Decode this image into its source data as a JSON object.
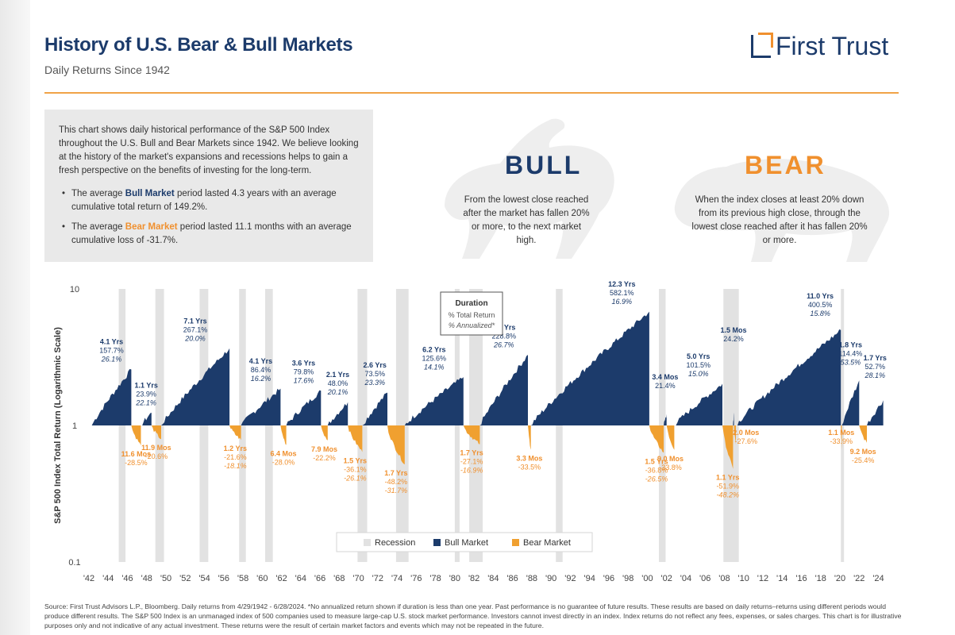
{
  "header": {
    "title": "History of U.S. Bear & Bull Markets",
    "subtitle": "Daily Returns Since 1942",
    "logo_text": "First Trust"
  },
  "intro": {
    "paragraph": "This chart shows daily historical performance of the S&P 500 Index throughout the U.S. Bull and Bear Markets since 1942. We believe looking at the history of the market's expansions and recessions helps to gain a fresh perspective on the benefits of investing for the long-term.",
    "bull_pre": "The average ",
    "bull_hl": "Bull Market",
    "bull_post": " period lasted 4.3 years with an average cumulative total return of 149.2%.",
    "bear_pre": "The average ",
    "bear_hl": "Bear Market",
    "bear_post": " period lasted 11.1 months with an average cumulative loss of -31.7%."
  },
  "hero": {
    "bull_word": "BULL",
    "bull_desc": "From the lowest close reached after the market has fallen 20% or more, to the next market high.",
    "bear_word": "BEAR",
    "bear_desc": "When the index closes at least 20% down from its previous high close, through the lowest close reached after it has fallen 20% or more."
  },
  "colors": {
    "bull": "#1c3b6b",
    "bear": "#f0a030",
    "recession": "#e2e2e2",
    "accent": "#f0a347"
  },
  "chart_data": {
    "type": "area",
    "ylabel": "S&P 500 Index Total Return (Logarithmic Scale)",
    "y_scale": "log",
    "ylim": [
      0.1,
      10
    ],
    "y_ticks": [
      "10",
      "1",
      "0.1"
    ],
    "xlim": [
      1942,
      2024.7
    ],
    "x_ticks": [
      "'42",
      "'44",
      "'46",
      "'48",
      "'50",
      "'52",
      "'54",
      "'56",
      "'58",
      "'60",
      "'62",
      "'64",
      "'66",
      "'68",
      "'70",
      "'72",
      "'74",
      "'76",
      "'78",
      "'80",
      "'82",
      "'84",
      "'86",
      "'88",
      "'90",
      "'92",
      "'94",
      "'96",
      "'98",
      "'00",
      "'02",
      "'04",
      "'06",
      "'08",
      "'10",
      "'12",
      "'14",
      "'16",
      "'18",
      "'20",
      "'22",
      "'24"
    ],
    "duration_box": {
      "title": "Duration",
      "line2": "% Total Return",
      "line3": "% Annualized*"
    },
    "legend": {
      "recession": "Recession",
      "bull": "Bull Market",
      "bear": "Bear Market",
      "position": "bottom-center"
    },
    "recessions": [
      [
        1945.1,
        1945.8
      ],
      [
        1948.9,
        1949.8
      ],
      [
        1953.5,
        1954.4
      ],
      [
        1957.6,
        1958.3
      ],
      [
        1960.3,
        1961.1
      ],
      [
        1969.9,
        1970.9
      ],
      [
        1973.9,
        1975.2
      ],
      [
        1980.0,
        1980.5
      ],
      [
        1981.5,
        1982.9
      ],
      [
        1990.5,
        1991.2
      ],
      [
        2001.2,
        2001.9
      ],
      [
        2007.9,
        2009.5
      ],
      [
        2020.1,
        2020.35
      ]
    ],
    "bull_markets": [
      {
        "start": 1942.3,
        "end": 1946.4,
        "peak": 2.57,
        "labels": [
          "4.1 Yrs",
          "157.7%",
          "26.1%"
        ]
      },
      {
        "start": 1947.4,
        "end": 1948.5,
        "peak": 1.24,
        "labels": [
          "1.1 Yrs",
          "23.9%",
          "22.1%"
        ]
      },
      {
        "start": 1949.5,
        "end": 1956.6,
        "peak": 3.67,
        "labels": [
          "7.1 Yrs",
          "267.1%",
          "20.0%"
        ]
      },
      {
        "start": 1957.8,
        "end": 1961.9,
        "peak": 1.86,
        "labels": [
          "4.1 Yrs",
          "86.4%",
          "16.2%"
        ]
      },
      {
        "start": 1962.5,
        "end": 1966.1,
        "peak": 1.8,
        "labels": [
          "3.6 Yrs",
          "79.8%",
          "17.6%"
        ]
      },
      {
        "start": 1966.8,
        "end": 1968.9,
        "peak": 1.48,
        "labels": [
          "2.1 Yrs",
          "48.0%",
          "20.1%"
        ]
      },
      {
        "start": 1970.4,
        "end": 1973.0,
        "peak": 1.74,
        "labels": [
          "2.6 Yrs",
          "73.5%",
          "23.3%"
        ]
      },
      {
        "start": 1974.8,
        "end": 1980.9,
        "peak": 2.26,
        "labels": [
          "6.2 Yrs",
          "125.6%",
          "14.1%"
        ]
      },
      {
        "start": 1982.6,
        "end": 1987.6,
        "peak": 3.29,
        "labels": [
          "5.0 Yrs",
          "228.8%",
          "26.7%"
        ]
      },
      {
        "start": 1987.9,
        "end": 2000.2,
        "peak": 6.82,
        "labels": [
          "12.3 Yrs",
          "582.1%",
          "16.9%"
        ]
      },
      {
        "start": 2001.7,
        "end": 2002.0,
        "peak": 1.21,
        "labels": [
          "3.4 Mos",
          "21.4%",
          ""
        ]
      },
      {
        "start": 2002.8,
        "end": 2007.8,
        "peak": 2.02,
        "labels": [
          "5.0 Yrs",
          "101.5%",
          "15.0%"
        ]
      },
      {
        "start": 2008.9,
        "end": 2009.0,
        "peak": 1.24,
        "labels": [
          "1.5 Mos",
          "24.2%",
          ""
        ]
      },
      {
        "start": 2009.2,
        "end": 2020.1,
        "peak": 5.0,
        "labels": [
          "11.0 Yrs",
          "400.5%",
          "15.8%"
        ]
      },
      {
        "start": 2020.2,
        "end": 2022.0,
        "peak": 2.14,
        "labels": [
          "1.8 Yrs",
          "114.4%",
          "53.5%"
        ]
      },
      {
        "start": 2022.8,
        "end": 2024.5,
        "peak": 1.53,
        "labels": [
          "1.7 Yrs",
          "52.7%",
          "28.1%"
        ]
      }
    ],
    "bear_markets": [
      {
        "start": 1946.4,
        "end": 1947.4,
        "trough": 0.715,
        "labels": [
          "11.6 Mos",
          "-28.5%",
          ""
        ]
      },
      {
        "start": 1948.5,
        "end": 1949.5,
        "trough": 0.794,
        "labels": [
          "11.9 Mos",
          "-20.6%",
          ""
        ]
      },
      {
        "start": 1956.6,
        "end": 1957.8,
        "trough": 0.784,
        "labels": [
          "1.2 Yrs",
          "-21.6%",
          "-18.1%"
        ]
      },
      {
        "start": 1961.9,
        "end": 1962.5,
        "trough": 0.72,
        "labels": [
          "6.4 Mos",
          "-28.0%",
          ""
        ]
      },
      {
        "start": 1966.1,
        "end": 1966.8,
        "trough": 0.778,
        "labels": [
          "7.9 Mos",
          "-22.2%",
          ""
        ]
      },
      {
        "start": 1968.9,
        "end": 1970.4,
        "trough": 0.639,
        "labels": [
          "1.5 Yrs",
          "-36.1%",
          "-26.1%"
        ]
      },
      {
        "start": 1973.0,
        "end": 1974.8,
        "trough": 0.518,
        "labels": [
          "1.7 Yrs",
          "-48.2%",
          "-31.7%"
        ]
      },
      {
        "start": 1980.9,
        "end": 1982.6,
        "trough": 0.729,
        "labels": [
          "1.7 Yrs",
          "-27.1%",
          "-16.9%"
        ]
      },
      {
        "start": 1987.6,
        "end": 1987.9,
        "trough": 0.665,
        "labels": [
          "3.3 Mos",
          "-33.5%",
          ""
        ]
      },
      {
        "start": 2000.2,
        "end": 2001.7,
        "trough": 0.632,
        "labels": [
          "1.5 Yrs",
          "-36.8%",
          "-26.5%"
        ]
      },
      {
        "start": 2002.0,
        "end": 2002.8,
        "trough": 0.662,
        "labels": [
          "9.0 Mos",
          "-33.8%",
          ""
        ]
      },
      {
        "start": 2007.8,
        "end": 2008.9,
        "trough": 0.481,
        "labels": [
          "1.1 Yrs",
          "-51.9%",
          "-48.2%"
        ]
      },
      {
        "start": 2009.0,
        "end": 2009.2,
        "trough": 0.724,
        "labels": [
          "2.0 Mos",
          "-27.6%",
          ""
        ]
      },
      {
        "start": 2020.1,
        "end": 2020.2,
        "trough": 0.661,
        "labels": [
          "1.1 Mos",
          "-33.9%",
          ""
        ]
      },
      {
        "start": 2022.0,
        "end": 2022.8,
        "trough": 0.746,
        "labels": [
          "9.2 Mos",
          "-25.4%",
          ""
        ]
      }
    ]
  },
  "footnote": "Source: First Trust Advisors L.P., Bloomberg. Daily returns from 4/29/1942 - 6/28/2024. *No annualized return shown if duration is less than one year. Past performance is no guarantee of future results. These results are based on daily returns–returns using different periods would produce different results. The S&P 500 Index is an unmanaged index of 500 companies used to measure large-cap U.S. stock market performance. Investors cannot invest directly in an index. Index returns do not reflect any fees, expenses, or sales charges. This chart is for illustrative purposes only and not indicative of any actual investment. These returns were the result of certain market factors and events which may not be repeated in the future."
}
